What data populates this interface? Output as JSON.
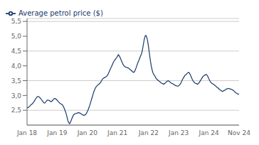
{
  "chart_data": {
    "type": "line",
    "categories": [
      "Jan 18",
      null,
      null,
      null,
      null,
      null,
      null,
      null,
      null,
      null,
      null,
      null,
      null,
      null,
      null,
      null,
      null,
      null,
      null,
      null,
      null,
      null,
      null,
      null,
      null,
      null,
      null,
      null,
      null,
      null,
      null,
      null,
      null,
      null,
      "Jan 19",
      null,
      null,
      null,
      null,
      null,
      null,
      null,
      null,
      null,
      null,
      null,
      null,
      null,
      null,
      null,
      null,
      null,
      null,
      null,
      null,
      null,
      null,
      null,
      null,
      null,
      null,
      null,
      null,
      null,
      null,
      null,
      null,
      null,
      "Jan 20",
      null,
      null,
      null,
      null,
      null,
      null,
      null,
      null,
      null,
      null,
      null,
      null,
      null,
      null,
      null,
      null,
      null,
      null,
      null,
      null,
      null,
      null,
      null,
      null,
      null,
      null,
      null,
      null,
      null,
      null,
      null,
      null,
      null,
      "Jan 21",
      null,
      null,
      null,
      null,
      null,
      null,
      null,
      null,
      null,
      null,
      null,
      null,
      null,
      null,
      null,
      null,
      null,
      null,
      null,
      null,
      null,
      null,
      null,
      null,
      null,
      null,
      null,
      null,
      null,
      null,
      null,
      null,
      null,
      null,
      "Jan 22",
      null,
      null,
      null,
      null,
      null,
      null,
      null,
      null,
      null,
      null,
      null,
      null,
      null,
      null,
      null,
      null,
      null,
      null,
      null,
      null,
      null,
      null,
      null,
      null,
      null,
      null,
      null,
      null,
      null,
      null,
      null,
      null,
      null,
      "Jan 23",
      null,
      null,
      null,
      null,
      null,
      null,
      null,
      null,
      null,
      null,
      null,
      null,
      null,
      null,
      null,
      null,
      null,
      null,
      null,
      null,
      null,
      null,
      null,
      null,
      null,
      null,
      null,
      null,
      null,
      null,
      null,
      null,
      null,
      "Jan 24",
      null,
      null,
      null,
      null,
      null,
      null,
      null,
      null,
      null,
      null,
      null,
      null,
      null,
      null,
      null,
      null,
      null,
      null,
      null,
      null,
      null,
      null,
      null,
      null,
      null,
      null,
      null,
      null,
      null,
      null,
      null,
      null,
      null,
      "Nov 24"
    ],
    "series": [
      {
        "name": "Average petrol price ($)",
        "color": "#1a3a6b",
        "values": [
          2.58,
          2.59,
          2.61,
          2.64,
          2.67,
          2.7,
          2.72,
          2.76,
          2.8,
          2.85,
          2.9,
          2.94,
          2.97,
          2.96,
          2.94,
          2.91,
          2.87,
          2.83,
          2.79,
          2.75,
          2.74,
          2.78,
          2.82,
          2.85,
          2.84,
          2.83,
          2.81,
          2.79,
          2.81,
          2.84,
          2.88,
          2.9,
          2.89,
          2.87,
          2.84,
          2.8,
          2.77,
          2.74,
          2.72,
          2.7,
          2.68,
          2.63,
          2.56,
          2.48,
          2.4,
          2.28,
          2.15,
          2.08,
          2.05,
          2.1,
          2.18,
          2.25,
          2.32,
          2.36,
          2.38,
          2.39,
          2.4,
          2.41,
          2.42,
          2.41,
          2.4,
          2.38,
          2.36,
          2.34,
          2.33,
          2.34,
          2.36,
          2.4,
          2.46,
          2.53,
          2.61,
          2.7,
          2.8,
          2.9,
          3.0,
          3.1,
          3.18,
          3.25,
          3.3,
          3.33,
          3.36,
          3.38,
          3.41,
          3.45,
          3.5,
          3.55,
          3.58,
          3.6,
          3.61,
          3.63,
          3.66,
          3.7,
          3.76,
          3.83,
          3.9,
          3.96,
          4.03,
          4.1,
          4.16,
          4.2,
          4.24,
          4.28,
          4.33,
          4.38,
          4.33,
          4.28,
          4.2,
          4.13,
          4.06,
          4.01,
          3.98,
          3.96,
          3.95,
          3.94,
          3.93,
          3.91,
          3.88,
          3.86,
          3.83,
          3.8,
          3.78,
          3.8,
          3.86,
          3.94,
          4.03,
          4.11,
          4.18,
          4.26,
          4.34,
          4.4,
          4.53,
          4.7,
          4.88,
          5.0,
          5.03,
          4.96,
          4.83,
          4.63,
          4.4,
          4.18,
          4.0,
          3.86,
          3.76,
          3.7,
          3.66,
          3.6,
          3.56,
          3.53,
          3.5,
          3.48,
          3.46,
          3.43,
          3.41,
          3.4,
          3.38,
          3.4,
          3.43,
          3.46,
          3.48,
          3.5,
          3.48,
          3.46,
          3.43,
          3.41,
          3.4,
          3.38,
          3.36,
          3.34,
          3.33,
          3.32,
          3.31,
          3.33,
          3.36,
          3.4,
          3.46,
          3.53,
          3.58,
          3.63,
          3.68,
          3.7,
          3.73,
          3.76,
          3.78,
          3.76,
          3.7,
          3.63,
          3.56,
          3.5,
          3.46,
          3.43,
          3.41,
          3.4,
          3.38,
          3.4,
          3.43,
          3.48,
          3.53,
          3.58,
          3.63,
          3.66,
          3.68,
          3.7,
          3.71,
          3.68,
          3.63,
          3.56,
          3.5,
          3.45,
          3.42,
          3.4,
          3.38,
          3.36,
          3.33,
          3.31,
          3.28,
          3.26,
          3.23,
          3.2,
          3.18,
          3.16,
          3.14,
          3.15,
          3.16,
          3.18,
          3.2,
          3.22,
          3.23,
          3.24,
          3.23,
          3.22,
          3.21,
          3.2,
          3.18,
          3.16,
          3.13,
          3.1,
          3.08,
          3.06,
          3.04,
          3.05
        ]
      }
    ],
    "ylim": [
      2.0,
      5.6
    ],
    "yticks": [
      {
        "value": 2.5,
        "label": "2,5"
      },
      {
        "value": 3.0,
        "label": "3,0"
      },
      {
        "value": 3.5,
        "label": "3,5"
      },
      {
        "value": 4.0,
        "label": "4,0"
      },
      {
        "value": 4.5,
        "label": "4,5"
      },
      {
        "value": 5.0,
        "label": "5,0"
      },
      {
        "value": 5.5,
        "label": "5,5"
      }
    ],
    "grid": true,
    "legend": "upper left"
  }
}
